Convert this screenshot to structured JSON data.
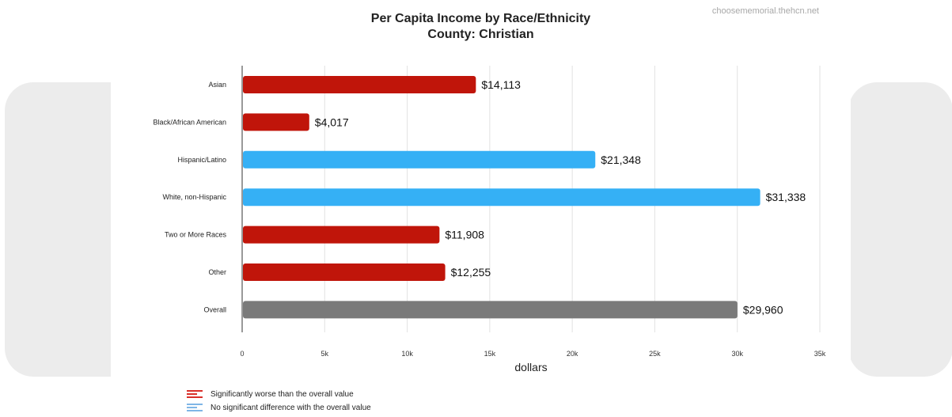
{
  "watermark": "choosememorial.thehcn.net",
  "chart_data": {
    "type": "bar",
    "orientation": "horizontal",
    "title": "Per Capita Income by Race/Ethnicity",
    "subtitle": "County: Christian",
    "xlabel": "dollars",
    "ylabel": "",
    "xlim": [
      0,
      35000
    ],
    "xticks": [
      {
        "value": 0,
        "label": "0"
      },
      {
        "value": 5000,
        "label": "5k"
      },
      {
        "value": 10000,
        "label": "10k"
      },
      {
        "value": 15000,
        "label": "15k"
      },
      {
        "value": 20000,
        "label": "20k"
      },
      {
        "value": 25000,
        "label": "25k"
      },
      {
        "value": 30000,
        "label": "30k"
      },
      {
        "value": 35000,
        "label": "35k"
      }
    ],
    "grid": true,
    "categories": [
      "Asian",
      "Black/African American",
      "Hispanic/Latino",
      "White, non-Hispanic",
      "Two or More Races",
      "Other",
      "Overall"
    ],
    "values": [
      14113,
      4017,
      21348,
      31338,
      11908,
      12255,
      29960
    ],
    "value_labels": [
      "$14,113",
      "$4,017",
      "$21,348",
      "$31,338",
      "$11,908",
      "$12,255",
      "$29,960"
    ],
    "status": [
      "worse",
      "worse",
      "nodiff",
      "nodiff",
      "worse",
      "worse",
      "overall"
    ],
    "colors": {
      "worse": "#c0150a",
      "nodiff": "#35b0f5",
      "overall": "#7a7a7a"
    },
    "legend_position": "bottom-left"
  },
  "legend": [
    {
      "key": "worse",
      "label": "Significantly worse than the overall value",
      "color": "#d9302a"
    },
    {
      "key": "nodiff",
      "label": "No significant difference with the overall value",
      "color": "#7fb6e6"
    }
  ]
}
